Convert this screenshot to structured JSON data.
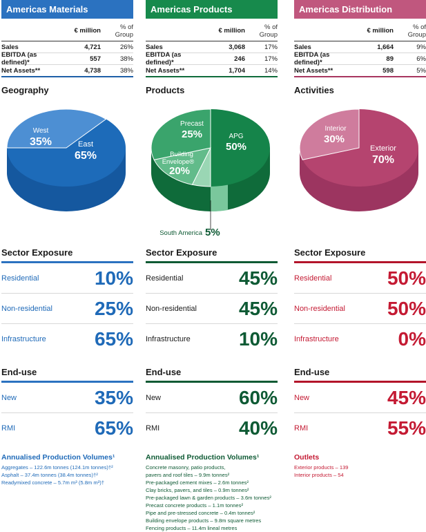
{
  "columns": [
    {
      "title": "Americas Materials",
      "fin_header": {
        "unit": "€ million",
        "pct": "% of Group"
      },
      "fin_rows": [
        {
          "label": "Sales",
          "value": "4,721",
          "pct": "26%"
        },
        {
          "label": "EBITDA (as defined)*",
          "value": "557",
          "pct": "38%"
        },
        {
          "label": "Net Assets**",
          "value": "4,738",
          "pct": "38%"
        }
      ],
      "pie_title": "Geography",
      "pie": [
        {
          "label": "East",
          "value": "65%",
          "share": 65
        },
        {
          "label": "West",
          "value": "35%",
          "share": 35
        }
      ],
      "sector_title": "Sector Exposure",
      "sector": [
        {
          "label": "Residential",
          "value": "10%"
        },
        {
          "label": "Non-residential",
          "value": "25%"
        },
        {
          "label": "Infrastructure",
          "value": "65%"
        }
      ],
      "enduse_title": "End-use",
      "enduse": [
        {
          "label": "New",
          "value": "35%"
        },
        {
          "label": "RMI",
          "value": "65%"
        }
      ],
      "prod_title": "Annualised Production Volumes¹",
      "prod_items": [
        "Aggregates – 122.6m tonnes (124.1m tonnes)†²",
        "Asphalt – 37.4m tonnes (38.4m tonnes)†²",
        "Readymixed concrete – 5.7m m³ (5.8m m³)†"
      ]
    },
    {
      "title": "Americas Products",
      "fin_header": {
        "unit": "€ million",
        "pct": "% of Group"
      },
      "fin_rows": [
        {
          "label": "Sales",
          "value": "3,068",
          "pct": "17%"
        },
        {
          "label": "EBITDA (as defined)*",
          "value": "246",
          "pct": "17%"
        },
        {
          "label": "Net Assets**",
          "value": "1,704",
          "pct": "14%"
        }
      ],
      "pie_title": "Products",
      "pie": [
        {
          "label": "APG",
          "value": "50%",
          "share": 50
        },
        {
          "label": "Precast",
          "value": "25%",
          "share": 25
        },
        {
          "label": "Building Envelope®",
          "value": "20%",
          "share": 20
        },
        {
          "label": "South America",
          "value": "5%",
          "share": 5
        }
      ],
      "sector_title": "Sector Exposure",
      "sector": [
        {
          "label": "Residential",
          "value": "45%"
        },
        {
          "label": "Non-residential",
          "value": "45%"
        },
        {
          "label": "Infrastructure",
          "value": "10%"
        }
      ],
      "enduse_title": "End-use",
      "enduse": [
        {
          "label": "New",
          "value": "60%"
        },
        {
          "label": "RMI",
          "value": "40%"
        }
      ],
      "prod_title": "Annualised Production Volumes¹",
      "prod_items": [
        "Concrete masonry, patio products,",
        "pavers and roof tiles – 9.9m tonnes²",
        "Pre-packaged cement mixes – 2.6m tonnes²",
        "Clay bricks, pavers, and tiles – 0.9m tonnes²",
        "Pre-packaged lawn & garden products – 3.6m tonnes²",
        "Precast concrete products – 1.1m tonnes²",
        "Pipe and pre-stressed concrete – 0.4m tonnes²",
        "Building envelope products – 9.8m square metres",
        "Fencing products – 11.4m lineal metres"
      ]
    },
    {
      "title": "Americas Distribution",
      "fin_header": {
        "unit": "€ million",
        "pct": "% of Group"
      },
      "fin_rows": [
        {
          "label": "Sales",
          "value": "1,664",
          "pct": "9%"
        },
        {
          "label": "EBITDA (as defined)*",
          "value": "89",
          "pct": "6%"
        },
        {
          "label": "Net Assets**",
          "value": "598",
          "pct": "5%"
        }
      ],
      "pie_title": "Activities",
      "pie": [
        {
          "label": "Exterior",
          "value": "70%",
          "share": 70
        },
        {
          "label": "Interior",
          "value": "30%",
          "share": 30
        }
      ],
      "sector_title": "Sector Exposure",
      "sector": [
        {
          "label": "Residential",
          "value": "50%"
        },
        {
          "label": "Non-residential",
          "value": "50%"
        },
        {
          "label": "Infrastructure",
          "value": "0%"
        }
      ],
      "enduse_title": "End-use",
      "enduse": [
        {
          "label": "New",
          "value": "45%"
        },
        {
          "label": "RMI",
          "value": "55%"
        }
      ],
      "prod_title": "Outlets",
      "prod_items": [
        "Exterior products  –  139",
        "Interior products  –  54"
      ]
    }
  ],
  "colors": {
    "materials_dark": "#1d6bb9",
    "materials_light": "#4d8fd3",
    "products_dark": "#15844a",
    "products_mid": "#3aa46c",
    "products_light": "#62bb8a",
    "products_pale": "#9ad6b4",
    "distribution_dark": "#b5446f",
    "distribution_light": "#cf7c9d"
  }
}
